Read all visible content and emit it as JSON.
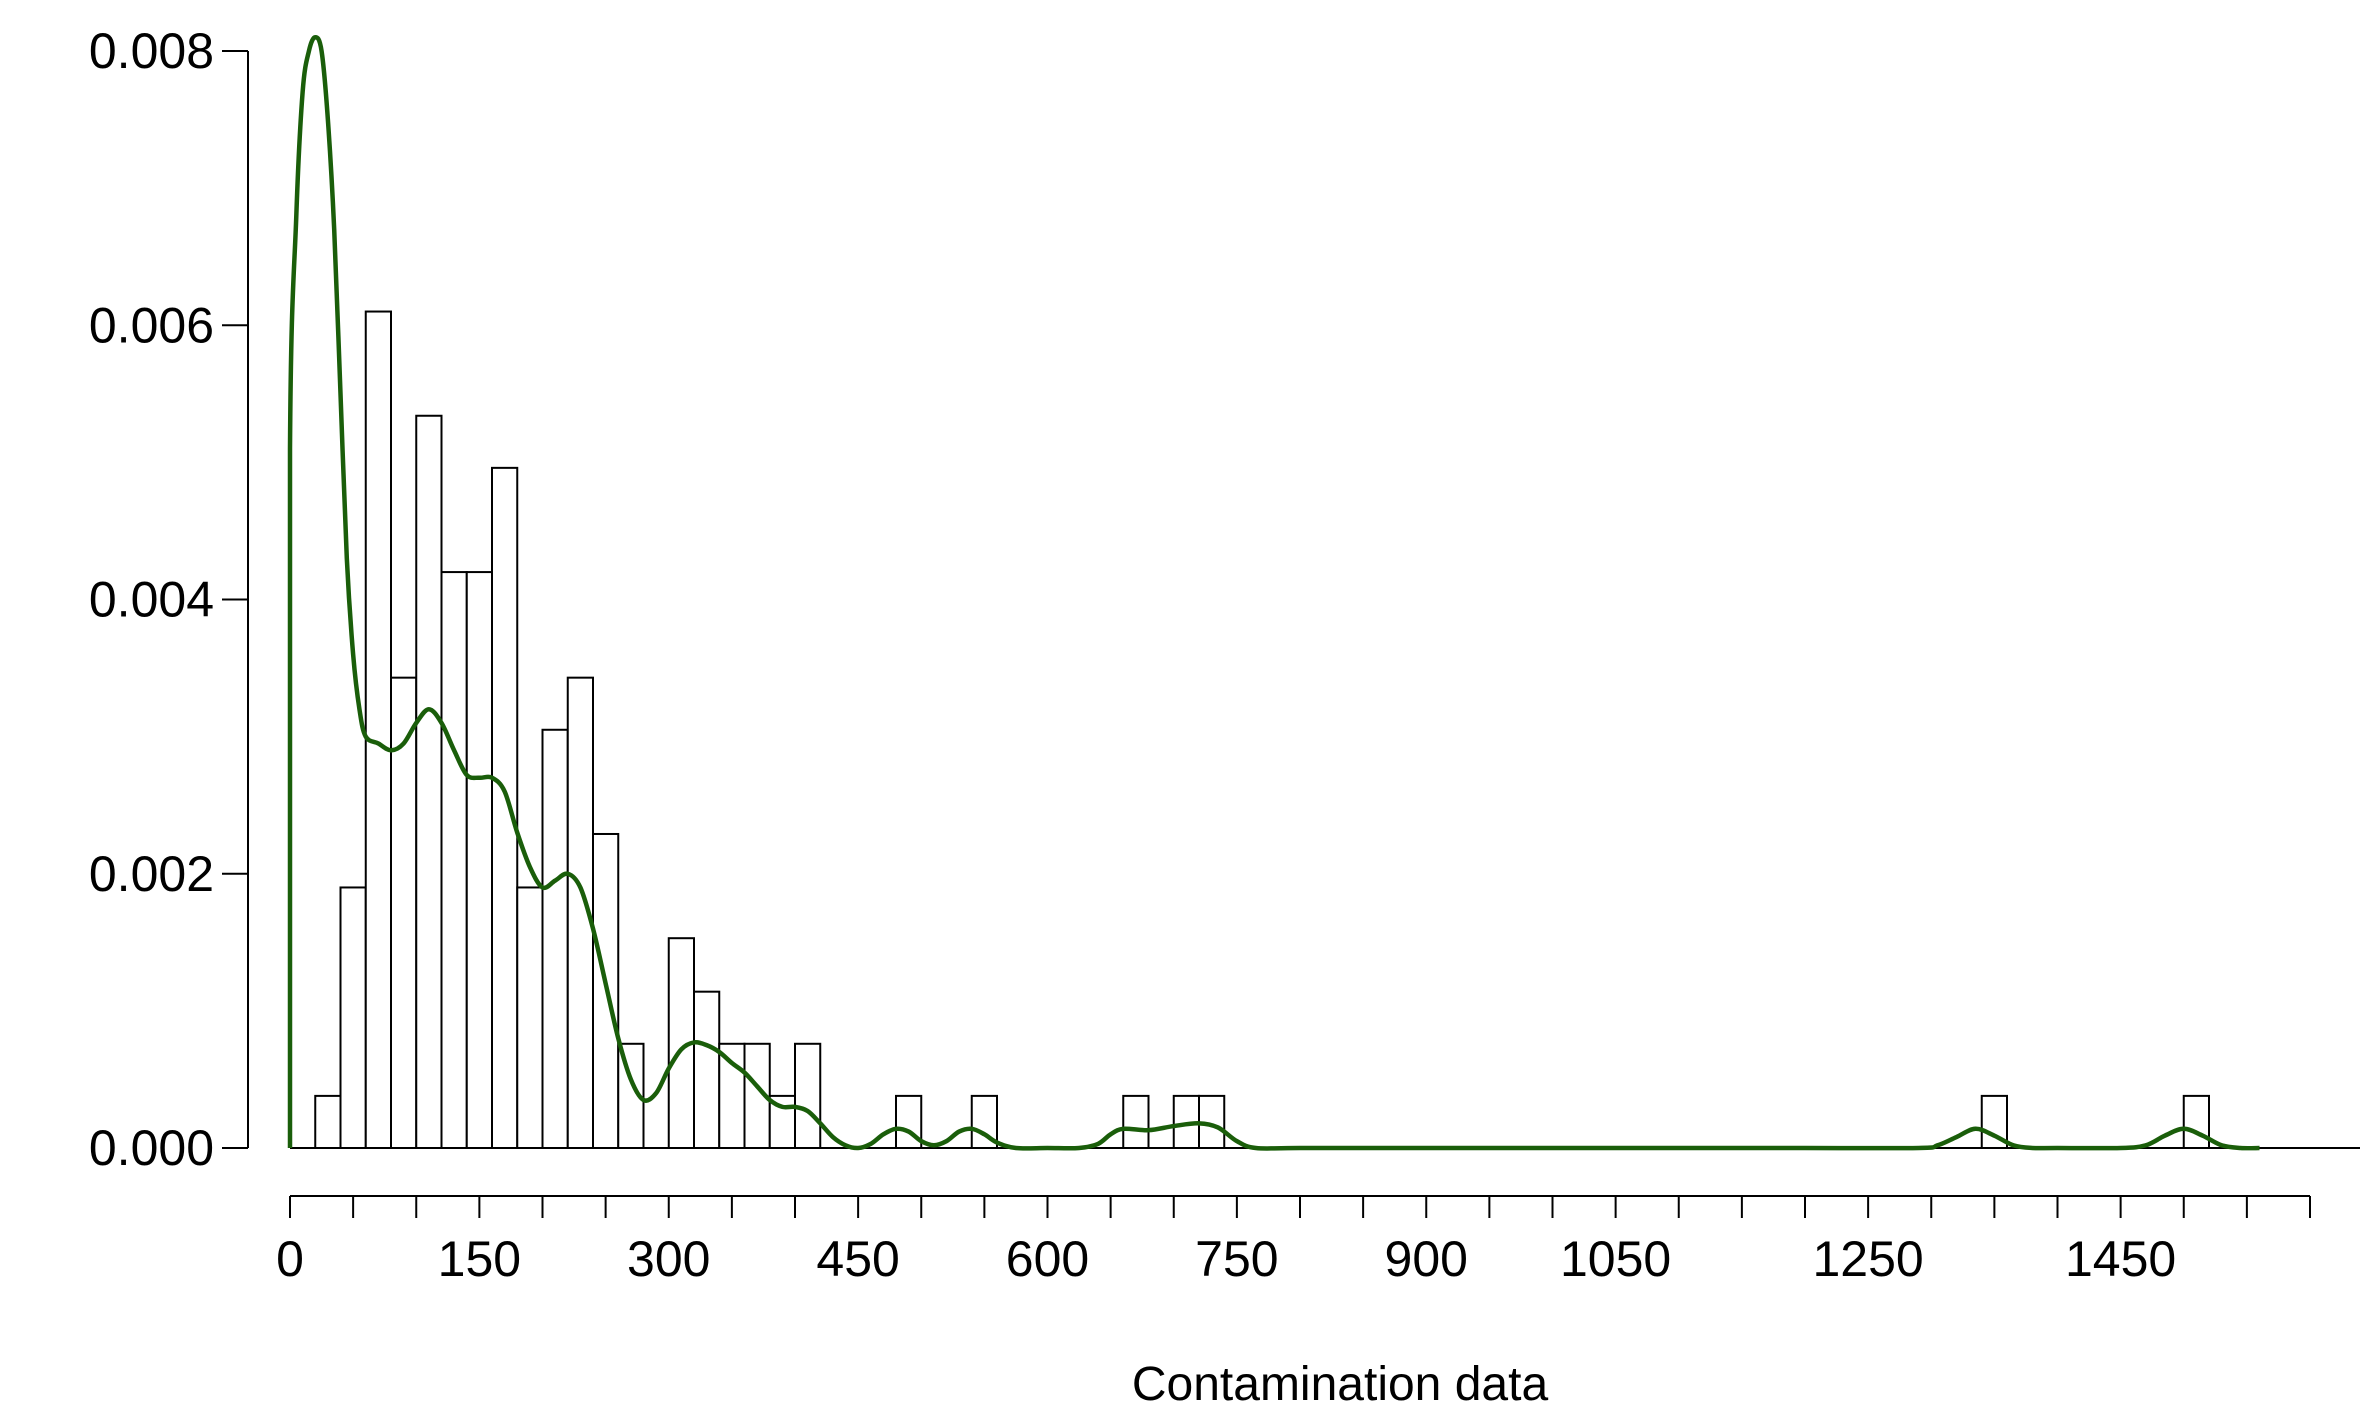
{
  "chart_data": {
    "type": "bar",
    "title": "",
    "xlabel": "Contamination data",
    "ylabel": "",
    "xlim": [
      0,
      1600
    ],
    "ylim": [
      0,
      0.008
    ],
    "grid": false,
    "legend": "none",
    "y_ticks": [
      {
        "value": 0.0,
        "label": "0.000"
      },
      {
        "value": 0.002,
        "label": "0.002"
      },
      {
        "value": 0.004,
        "label": "0.004"
      },
      {
        "value": 0.006,
        "label": "0.006"
      },
      {
        "value": 0.008,
        "label": "0.008"
      }
    ],
    "x_tick_labels": [
      {
        "value": 0,
        "label": "0"
      },
      {
        "value": 150,
        "label": "150"
      },
      {
        "value": 300,
        "label": "300"
      },
      {
        "value": 450,
        "label": "450"
      },
      {
        "value": 600,
        "label": "600"
      },
      {
        "value": 750,
        "label": "750"
      },
      {
        "value": 900,
        "label": "900"
      },
      {
        "value": 1050,
        "label": "1050"
      },
      {
        "value": 1250,
        "label": "1250"
      },
      {
        "value": 1450,
        "label": "1450"
      }
    ],
    "x_minor_ticks": [
      0,
      50,
      100,
      150,
      200,
      250,
      300,
      350,
      400,
      450,
      500,
      550,
      600,
      650,
      700,
      750,
      800,
      850,
      900,
      950,
      1000,
      1050,
      1100,
      1150,
      1200,
      1250,
      1300,
      1350,
      1400,
      1450,
      1500,
      1550,
      1600
    ],
    "histogram": {
      "bin_width": 20,
      "bins": [
        {
          "start": 20,
          "density": 0.00038
        },
        {
          "start": 40,
          "density": 0.0019
        },
        {
          "start": 60,
          "density": 0.0061
        },
        {
          "start": 80,
          "density": 0.00343
        },
        {
          "start": 100,
          "density": 0.00534
        },
        {
          "start": 120,
          "density": 0.0042
        },
        {
          "start": 140,
          "density": 0.0042
        },
        {
          "start": 160,
          "density": 0.00496
        },
        {
          "start": 180,
          "density": 0.0019
        },
        {
          "start": 200,
          "density": 0.00305
        },
        {
          "start": 220,
          "density": 0.00343
        },
        {
          "start": 240,
          "density": 0.00229
        },
        {
          "start": 260,
          "density": 0.00076
        },
        {
          "start": 280,
          "density": 0.0
        },
        {
          "start": 300,
          "density": 0.00153
        },
        {
          "start": 320,
          "density": 0.00114
        },
        {
          "start": 340,
          "density": 0.00076
        },
        {
          "start": 360,
          "density": 0.00076
        },
        {
          "start": 380,
          "density": 0.00038
        },
        {
          "start": 400,
          "density": 0.00076
        },
        {
          "start": 480,
          "density": 0.00038
        },
        {
          "start": 540,
          "density": 0.00038
        },
        {
          "start": 660,
          "density": 0.00038
        },
        {
          "start": 700,
          "density": 0.00038
        },
        {
          "start": 720,
          "density": 0.00038
        },
        {
          "start": 1340,
          "density": 0.00038
        },
        {
          "start": 1500,
          "density": 0.00038
        }
      ]
    },
    "density_curve": {
      "color": "#1a5e0a",
      "points": [
        [
          0,
          0.0
        ],
        [
          0,
          0.0051
        ],
        [
          5,
          0.0068
        ],
        [
          10,
          0.0077
        ],
        [
          15,
          0.008
        ],
        [
          20,
          0.0081
        ],
        [
          25,
          0.008
        ],
        [
          30,
          0.0075
        ],
        [
          35,
          0.0067
        ],
        [
          40,
          0.0055
        ],
        [
          45,
          0.0043
        ],
        [
          50,
          0.0036
        ],
        [
          55,
          0.0032
        ],
        [
          60,
          0.003
        ],
        [
          70,
          0.00295
        ],
        [
          80,
          0.0029
        ],
        [
          90,
          0.00295
        ],
        [
          100,
          0.0031
        ],
        [
          110,
          0.0032
        ],
        [
          120,
          0.0031
        ],
        [
          130,
          0.0029
        ],
        [
          140,
          0.00272
        ],
        [
          150,
          0.0027
        ],
        [
          160,
          0.0027
        ],
        [
          170,
          0.0026
        ],
        [
          180,
          0.0023
        ],
        [
          190,
          0.00205
        ],
        [
          200,
          0.0019
        ],
        [
          210,
          0.00195
        ],
        [
          220,
          0.002
        ],
        [
          230,
          0.0019
        ],
        [
          240,
          0.0016
        ],
        [
          250,
          0.0012
        ],
        [
          260,
          0.0008
        ],
        [
          270,
          0.0005
        ],
        [
          280,
          0.00035
        ],
        [
          290,
          0.0004
        ],
        [
          300,
          0.00058
        ],
        [
          310,
          0.00072
        ],
        [
          320,
          0.00077
        ],
        [
          330,
          0.00075
        ],
        [
          340,
          0.0007
        ],
        [
          350,
          0.00062
        ],
        [
          360,
          0.00055
        ],
        [
          370,
          0.00045
        ],
        [
          380,
          0.00035
        ],
        [
          390,
          0.0003
        ],
        [
          400,
          0.0003
        ],
        [
          410,
          0.00027
        ],
        [
          420,
          0.00018
        ],
        [
          430,
          8e-05
        ],
        [
          440,
          2e-05
        ],
        [
          450,
          0.0
        ],
        [
          460,
          3e-05
        ],
        [
          470,
          0.0001
        ],
        [
          480,
          0.00014
        ],
        [
          490,
          0.00012
        ],
        [
          500,
          5e-05
        ],
        [
          510,
          2e-05
        ],
        [
          520,
          5e-05
        ],
        [
          530,
          0.00012
        ],
        [
          540,
          0.00014
        ],
        [
          550,
          0.0001
        ],
        [
          560,
          4e-05
        ],
        [
          575,
          0.0
        ],
        [
          600,
          0.0
        ],
        [
          625,
          0.0
        ],
        [
          640,
          3e-05
        ],
        [
          650,
          0.0001
        ],
        [
          660,
          0.00014
        ],
        [
          680,
          0.00013
        ],
        [
          700,
          0.00016
        ],
        [
          720,
          0.00018
        ],
        [
          735,
          0.00015
        ],
        [
          750,
          5e-05
        ],
        [
          765,
          0.0
        ],
        [
          800,
          0.0
        ],
        [
          900,
          0.0
        ],
        [
          1000,
          0.0
        ],
        [
          1100,
          0.0
        ],
        [
          1200,
          0.0
        ],
        [
          1290,
          0.0
        ],
        [
          1305,
          2e-05
        ],
        [
          1320,
          8e-05
        ],
        [
          1335,
          0.00014
        ],
        [
          1350,
          9e-05
        ],
        [
          1365,
          2e-05
        ],
        [
          1380,
          0.0
        ],
        [
          1400,
          0.0
        ],
        [
          1450,
          0.0
        ],
        [
          1470,
          2e-05
        ],
        [
          1485,
          9e-05
        ],
        [
          1500,
          0.00014
        ],
        [
          1515,
          9e-05
        ],
        [
          1530,
          2e-05
        ],
        [
          1545,
          0.0
        ],
        [
          1560,
          0.0
        ]
      ]
    }
  }
}
